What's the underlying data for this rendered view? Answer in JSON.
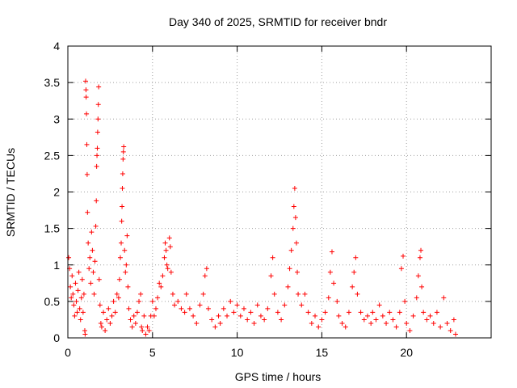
{
  "chart_data": {
    "type": "scatter",
    "title": "Day 340 of 2025, SRMTID for receiver bndr",
    "xlabel": "GPS time / hours",
    "ylabel": "SRMTID / TECUs",
    "xlim": [
      0,
      25
    ],
    "ylim": [
      0,
      4
    ],
    "xticks": [
      0,
      5,
      10,
      15,
      20
    ],
    "xtick_labels": [
      "0",
      "5",
      "10",
      "15",
      "20"
    ],
    "yticks": [
      0,
      0.5,
      1,
      1.5,
      2,
      2.5,
      3,
      3.5,
      4
    ],
    "ytick_labels": [
      "0",
      "0.5",
      "1",
      "1.5",
      "2",
      "2.5",
      "3",
      "3.5",
      "4"
    ],
    "grid": true,
    "marker": "+",
    "color": "#ff0000",
    "series": [
      {
        "name": "SRMTID",
        "points": [
          [
            0.05,
            1.1
          ],
          [
            0.1,
            0.95
          ],
          [
            0.15,
            0.7
          ],
          [
            0.2,
            0.55
          ],
          [
            0.25,
            0.85
          ],
          [
            0.3,
            0.6
          ],
          [
            0.35,
            0.45
          ],
          [
            0.4,
            0.3
          ],
          [
            0.45,
            0.75
          ],
          [
            0.5,
            0.5
          ],
          [
            0.55,
            0.35
          ],
          [
            0.6,
            0.65
          ],
          [
            0.65,
            0.9
          ],
          [
            0.7,
            0.4
          ],
          [
            0.75,
            0.25
          ],
          [
            0.8,
            0.55
          ],
          [
            0.85,
            0.8
          ],
          [
            0.9,
            0.35
          ],
          [
            0.95,
            0.6
          ],
          [
            1.0,
            0.1
          ],
          [
            1.02,
            0.05
          ],
          [
            1.05,
            3.52
          ],
          [
            1.07,
            3.4
          ],
          [
            1.08,
            3.3
          ],
          [
            1.1,
            3.07
          ],
          [
            1.12,
            2.65
          ],
          [
            1.14,
            2.24
          ],
          [
            1.16,
            1.72
          ],
          [
            1.2,
            1.3
          ],
          [
            1.25,
            0.95
          ],
          [
            1.3,
            1.1
          ],
          [
            1.35,
            0.75
          ],
          [
            1.4,
            1.45
          ],
          [
            1.45,
            1.2
          ],
          [
            1.5,
            0.9
          ],
          [
            1.55,
            0.6
          ],
          [
            1.6,
            1.05
          ],
          [
            1.65,
            1.53
          ],
          [
            1.68,
            1.88
          ],
          [
            1.7,
            2.35
          ],
          [
            1.72,
            2.5
          ],
          [
            1.74,
            2.6
          ],
          [
            1.76,
            2.82
          ],
          [
            1.78,
            3.0
          ],
          [
            1.8,
            3.2
          ],
          [
            1.82,
            3.44
          ],
          [
            1.85,
            0.8
          ],
          [
            1.9,
            0.45
          ],
          [
            1.95,
            0.2
          ],
          [
            2.0,
            0.15
          ],
          [
            2.1,
            0.35
          ],
          [
            2.2,
            0.1
          ],
          [
            2.3,
            0.25
          ],
          [
            2.4,
            0.4
          ],
          [
            2.5,
            0.2
          ],
          [
            2.6,
            0.3
          ],
          [
            2.7,
            0.5
          ],
          [
            2.8,
            0.35
          ],
          [
            2.9,
            0.6
          ],
          [
            3.0,
            0.55
          ],
          [
            3.05,
            0.8
          ],
          [
            3.1,
            1.1
          ],
          [
            3.15,
            1.3
          ],
          [
            3.18,
            1.6
          ],
          [
            3.2,
            1.8
          ],
          [
            3.22,
            2.05
          ],
          [
            3.24,
            2.25
          ],
          [
            3.26,
            2.45
          ],
          [
            3.28,
            2.55
          ],
          [
            3.3,
            2.62
          ],
          [
            3.35,
            1.2
          ],
          [
            3.4,
            0.9
          ],
          [
            3.45,
            1.0
          ],
          [
            3.5,
            1.4
          ],
          [
            3.55,
            0.7
          ],
          [
            3.6,
            0.4
          ],
          [
            3.7,
            0.25
          ],
          [
            3.8,
            0.15
          ],
          [
            3.9,
            0.3
          ],
          [
            4.0,
            0.2
          ],
          [
            4.1,
            0.35
          ],
          [
            4.2,
            0.5
          ],
          [
            4.3,
            0.6
          ],
          [
            4.35,
            0.15
          ],
          [
            4.4,
            0.1
          ],
          [
            4.5,
            0.3
          ],
          [
            4.6,
            0.05
          ],
          [
            4.7,
            0.15
          ],
          [
            4.8,
            0.1
          ],
          [
            4.9,
            0.3
          ],
          [
            5.0,
            0.5
          ],
          [
            5.1,
            0.3
          ],
          [
            5.2,
            0.4
          ],
          [
            5.3,
            0.55
          ],
          [
            5.4,
            0.75
          ],
          [
            5.5,
            0.7
          ],
          [
            5.6,
            0.85
          ],
          [
            5.7,
            1.1
          ],
          [
            5.75,
            1.3
          ],
          [
            5.8,
            1.2
          ],
          [
            5.85,
            1.0
          ],
          [
            5.9,
            0.95
          ],
          [
            6.0,
            1.37
          ],
          [
            6.05,
            1.25
          ],
          [
            6.1,
            0.9
          ],
          [
            6.2,
            0.6
          ],
          [
            6.3,
            0.45
          ],
          [
            6.5,
            0.5
          ],
          [
            6.7,
            0.4
          ],
          [
            6.9,
            0.35
          ],
          [
            7.0,
            0.6
          ],
          [
            7.2,
            0.4
          ],
          [
            7.4,
            0.3
          ],
          [
            7.6,
            0.2
          ],
          [
            7.8,
            0.45
          ],
          [
            8.0,
            0.6
          ],
          [
            8.1,
            0.85
          ],
          [
            8.2,
            0.95
          ],
          [
            8.3,
            0.4
          ],
          [
            8.5,
            0.25
          ],
          [
            8.7,
            0.15
          ],
          [
            8.9,
            0.3
          ],
          [
            9.0,
            0.2
          ],
          [
            9.2,
            0.4
          ],
          [
            9.4,
            0.3
          ],
          [
            9.6,
            0.5
          ],
          [
            9.8,
            0.35
          ],
          [
            10.0,
            0.45
          ],
          [
            10.2,
            0.3
          ],
          [
            10.4,
            0.4
          ],
          [
            10.6,
            0.25
          ],
          [
            10.8,
            0.35
          ],
          [
            11.0,
            0.2
          ],
          [
            11.2,
            0.45
          ],
          [
            11.4,
            0.3
          ],
          [
            11.6,
            0.25
          ],
          [
            11.8,
            0.4
          ],
          [
            12.0,
            0.85
          ],
          [
            12.1,
            1.1
          ],
          [
            12.2,
            0.6
          ],
          [
            12.4,
            0.35
          ],
          [
            12.6,
            0.25
          ],
          [
            12.8,
            0.45
          ],
          [
            13.0,
            0.7
          ],
          [
            13.1,
            0.95
          ],
          [
            13.2,
            1.2
          ],
          [
            13.3,
            1.5
          ],
          [
            13.35,
            1.8
          ],
          [
            13.4,
            2.05
          ],
          [
            13.45,
            1.65
          ],
          [
            13.5,
            1.3
          ],
          [
            13.55,
            0.9
          ],
          [
            13.6,
            0.6
          ],
          [
            13.8,
            0.45
          ],
          [
            14.0,
            0.6
          ],
          [
            14.2,
            0.35
          ],
          [
            14.4,
            0.2
          ],
          [
            14.6,
            0.3
          ],
          [
            14.8,
            0.15
          ],
          [
            15.0,
            0.25
          ],
          [
            15.2,
            0.35
          ],
          [
            15.4,
            0.55
          ],
          [
            15.5,
            0.9
          ],
          [
            15.6,
            1.18
          ],
          [
            15.7,
            0.75
          ],
          [
            15.9,
            0.5
          ],
          [
            16.0,
            0.3
          ],
          [
            16.2,
            0.2
          ],
          [
            16.4,
            0.15
          ],
          [
            16.6,
            0.35
          ],
          [
            16.8,
            0.7
          ],
          [
            16.9,
            0.9
          ],
          [
            17.0,
            1.1
          ],
          [
            17.1,
            0.6
          ],
          [
            17.3,
            0.35
          ],
          [
            17.5,
            0.25
          ],
          [
            17.7,
            0.3
          ],
          [
            17.9,
            0.2
          ],
          [
            18.0,
            0.35
          ],
          [
            18.2,
            0.25
          ],
          [
            18.4,
            0.45
          ],
          [
            18.6,
            0.3
          ],
          [
            18.8,
            0.2
          ],
          [
            19.0,
            0.35
          ],
          [
            19.2,
            0.25
          ],
          [
            19.4,
            0.15
          ],
          [
            19.6,
            0.35
          ],
          [
            19.7,
            0.95
          ],
          [
            19.8,
            1.12
          ],
          [
            19.9,
            0.5
          ],
          [
            20.0,
            0.2
          ],
          [
            20.2,
            0.1
          ],
          [
            20.4,
            0.3
          ],
          [
            20.6,
            0.55
          ],
          [
            20.7,
            0.85
          ],
          [
            20.8,
            1.1
          ],
          [
            20.85,
            1.2
          ],
          [
            20.9,
            0.7
          ],
          [
            21.0,
            0.35
          ],
          [
            21.2,
            0.25
          ],
          [
            21.4,
            0.3
          ],
          [
            21.6,
            0.2
          ],
          [
            21.8,
            0.35
          ],
          [
            22.0,
            0.15
          ],
          [
            22.2,
            0.55
          ],
          [
            22.4,
            0.2
          ],
          [
            22.6,
            0.1
          ],
          [
            22.8,
            0.25
          ],
          [
            22.9,
            0.05
          ]
        ]
      }
    ]
  }
}
